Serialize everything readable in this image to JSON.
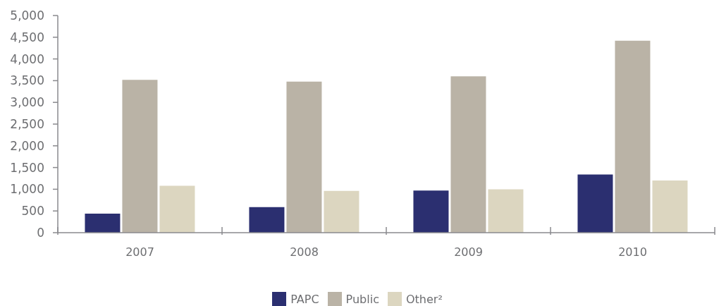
{
  "chart_data": {
    "type": "bar",
    "categories": [
      "2007",
      "2008",
      "2009",
      "2010"
    ],
    "series": [
      {
        "name": "PAPC",
        "color": "#2b2f70",
        "values": [
          440,
          590,
          970,
          1340
        ]
      },
      {
        "name": "Public",
        "color": "#bab3a6",
        "values": [
          3520,
          3480,
          3600,
          4420
        ]
      },
      {
        "name": "Other²",
        "color": "#dcd6c0",
        "values": [
          1080,
          960,
          1000,
          1200
        ]
      }
    ],
    "ylim": [
      0,
      5000
    ],
    "yticks": [
      0,
      500,
      {
        "value": 1000,
        "label": "1,000"
      },
      {
        "value": 1500,
        "label": "1,500"
      },
      {
        "value": 2000,
        "label": "2,000"
      },
      {
        "value": 2500,
        "label": "2,500"
      },
      {
        "value": 3000,
        "label": "3,000"
      },
      {
        "value": 3500,
        "label": "3,500"
      },
      {
        "value": 4000,
        "label": "4,000"
      },
      {
        "value": 4500,
        "label": "4,500"
      },
      {
        "value": 5000,
        "label": "5,000"
      }
    ],
    "legend": "bottom"
  }
}
